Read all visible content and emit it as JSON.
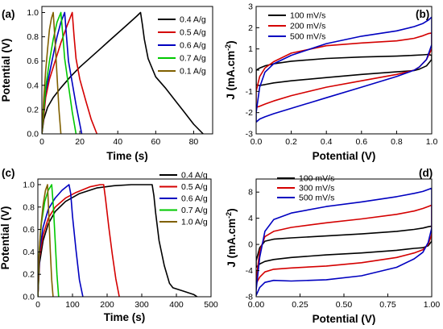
{
  "chart_data": [
    {
      "panel_label": "(a)",
      "type": "line",
      "xlabel": "Time (s)",
      "ylabel": "Potential (V)",
      "xlim": [
        0,
        90
      ],
      "ylim": [
        0,
        1.05
      ],
      "xticks": [
        0,
        20,
        40,
        60,
        80
      ],
      "yticks": [
        0.0,
        0.2,
        0.4,
        0.6,
        0.8,
        1.0
      ],
      "xtick_labels": [
        "0",
        "20",
        "40",
        "60",
        "80"
      ],
      "ytick_labels": [
        "0.0",
        "0.2",
        "0.4",
        "0.6",
        "0.8",
        "1.0"
      ],
      "legend_position": "top-right",
      "series": [
        {
          "name": "0.4 A/g",
          "color": "#000000",
          "x": [
            0,
            1,
            3,
            6,
            10,
            15,
            20,
            25,
            30,
            35,
            40,
            45,
            50,
            52,
            53,
            54,
            56,
            60,
            65,
            70,
            75,
            80,
            85
          ],
          "y": [
            0,
            0.12,
            0.22,
            0.3,
            0.38,
            0.47,
            0.55,
            0.62,
            0.69,
            0.76,
            0.83,
            0.9,
            0.97,
            1.0,
            0.9,
            0.78,
            0.62,
            0.47,
            0.38,
            0.28,
            0.18,
            0.08,
            0.0
          ]
        },
        {
          "name": "0.5 A/g",
          "color": "#d40000",
          "x": [
            0,
            1,
            2,
            4,
            7,
            10,
            13,
            16,
            17,
            18,
            20,
            23,
            26,
            29
          ],
          "y": [
            0,
            0.15,
            0.3,
            0.45,
            0.6,
            0.75,
            0.88,
            1.0,
            0.8,
            0.62,
            0.45,
            0.28,
            0.12,
            0.0
          ]
        },
        {
          "name": "0.6 A/g",
          "color": "#0000c0",
          "x": [
            0,
            1,
            2,
            4,
            6,
            8,
            10,
            12,
            13,
            14,
            16,
            18,
            20,
            21
          ],
          "y": [
            0,
            0.2,
            0.35,
            0.5,
            0.65,
            0.8,
            0.92,
            1.0,
            0.8,
            0.6,
            0.42,
            0.24,
            0.08,
            0.0
          ]
        },
        {
          "name": "0.7 A/g",
          "color": "#00c800",
          "x": [
            0,
            1,
            2,
            4,
            6,
            8,
            10,
            11,
            12,
            14,
            16,
            18
          ],
          "y": [
            0,
            0.2,
            0.38,
            0.6,
            0.78,
            0.92,
            1.0,
            0.82,
            0.62,
            0.4,
            0.18,
            0.0
          ]
        },
        {
          "name": "0.1 A/g",
          "color": "#806000",
          "x": [
            0,
            1,
            2,
            3,
            4,
            5,
            6,
            7,
            8,
            9,
            10
          ],
          "y": [
            0,
            0.3,
            0.52,
            0.7,
            0.86,
            0.95,
            1.0,
            0.75,
            0.48,
            0.2,
            0.0
          ]
        }
      ]
    },
    {
      "panel_label": "(b)",
      "type": "line",
      "xlabel": "Potential (V)",
      "ylabel": "J (mA.cm-2)",
      "ylabel_main": "J (mA.cm",
      "ylabel_sup": "-2",
      "ylabel_end": ")",
      "xlim": [
        0,
        1.0
      ],
      "ylim": [
        -3,
        3
      ],
      "xticks": [
        0,
        0.2,
        0.4,
        0.6,
        0.8,
        1.0
      ],
      "yticks": [
        -3,
        -2,
        -1,
        0,
        1,
        2,
        3
      ],
      "xtick_labels": [
        "0.0",
        "0.2",
        "0.4",
        "0.6",
        "0.8",
        "1.0"
      ],
      "ytick_labels": [
        "-3",
        "-2",
        "-1",
        "0",
        "1",
        "2",
        "3"
      ],
      "legend_position": "top-left",
      "series": [
        {
          "name": "100 mV/s",
          "color": "#000000",
          "x": [
            0,
            0.02,
            0.05,
            0.1,
            0.2,
            0.4,
            0.6,
            0.8,
            0.9,
            0.95,
            0.98,
            1.0,
            1.0,
            0.97,
            0.93,
            0.9,
            0.8,
            0.6,
            0.4,
            0.2,
            0.1,
            0.05,
            0.02,
            0,
            0
          ],
          "y": [
            0,
            0.1,
            0.2,
            0.3,
            0.42,
            0.55,
            0.62,
            0.66,
            0.7,
            0.72,
            0.74,
            0.7,
            0.5,
            0.2,
            0.05,
            -0.02,
            -0.08,
            -0.2,
            -0.35,
            -0.5,
            -0.6,
            -0.68,
            -0.72,
            -0.7,
            0
          ]
        },
        {
          "name": "200 mV/s",
          "color": "#d40000",
          "x": [
            0,
            0.02,
            0.05,
            0.1,
            0.2,
            0.4,
            0.6,
            0.8,
            0.9,
            0.95,
            0.98,
            1.0,
            1.0,
            0.97,
            0.93,
            0.9,
            0.8,
            0.6,
            0.4,
            0.2,
            0.1,
            0.05,
            0.02,
            0,
            0
          ],
          "y": [
            -1.0,
            -0.3,
            0.1,
            0.4,
            0.8,
            1.15,
            1.28,
            1.38,
            1.5,
            1.62,
            1.72,
            1.75,
            1.0,
            0.5,
            0.15,
            0.0,
            -0.2,
            -0.5,
            -0.8,
            -1.2,
            -1.45,
            -1.6,
            -1.7,
            -1.75,
            -1.0
          ]
        },
        {
          "name": "500 mV/s",
          "color": "#0000c0",
          "x": [
            0,
            0.02,
            0.05,
            0.1,
            0.2,
            0.4,
            0.6,
            0.8,
            0.9,
            0.95,
            0.98,
            1.0,
            1.0,
            0.97,
            0.93,
            0.9,
            0.8,
            0.6,
            0.4,
            0.2,
            0.1,
            0.05,
            0.02,
            0,
            0
          ],
          "y": [
            -2.0,
            -0.8,
            -0.1,
            0.3,
            0.7,
            1.25,
            1.6,
            1.85,
            2.05,
            2.2,
            2.35,
            2.5,
            1.2,
            0.5,
            0.15,
            0.0,
            -0.3,
            -0.8,
            -1.3,
            -1.8,
            -2.05,
            -2.2,
            -2.3,
            -2.45,
            -2.0
          ]
        }
      ]
    },
    {
      "panel_label": "(c)",
      "type": "line",
      "xlabel": "Time (s)",
      "ylabel": "Potential (V)",
      "xlim": [
        0,
        500
      ],
      "ylim": [
        0,
        1.05
      ],
      "xticks": [
        0,
        100,
        200,
        300,
        400,
        500
      ],
      "yticks": [
        0.0,
        0.2,
        0.4,
        0.6,
        0.8,
        1.0
      ],
      "xtick_labels": [
        "0",
        "100",
        "200",
        "300",
        "400",
        "500"
      ],
      "ytick_labels": [
        "0.0",
        "0.2",
        "0.4",
        "0.6",
        "0.8",
        "1.0"
      ],
      "legend_position": "top-right",
      "series": [
        {
          "name": "0.4 A/g",
          "color": "#000000",
          "x": [
            0,
            5,
            15,
            30,
            50,
            80,
            120,
            170,
            220,
            270,
            310,
            330,
            335,
            340,
            350,
            365,
            380,
            390,
            420,
            450,
            460
          ],
          "y": [
            0,
            0.3,
            0.5,
            0.65,
            0.76,
            0.85,
            0.92,
            0.97,
            0.99,
            1.0,
            1.0,
            1.0,
            0.9,
            0.75,
            0.5,
            0.28,
            0.12,
            0.08,
            0.05,
            0.02,
            0.0
          ]
        },
        {
          "name": "0.5 A/g",
          "color": "#d40000",
          "x": [
            0,
            5,
            15,
            30,
            50,
            80,
            110,
            150,
            180,
            190,
            195,
            205,
            215,
            225,
            235
          ],
          "y": [
            0,
            0.35,
            0.55,
            0.7,
            0.8,
            0.88,
            0.93,
            0.98,
            1.0,
            1.0,
            0.88,
            0.62,
            0.38,
            0.16,
            0.0
          ]
        },
        {
          "name": "0.6 A/g",
          "color": "#0000c0",
          "x": [
            0,
            5,
            15,
            30,
            50,
            70,
            90,
            95,
            100,
            110,
            120,
            130
          ],
          "y": [
            0,
            0.4,
            0.62,
            0.78,
            0.88,
            0.95,
            1.0,
            0.92,
            0.72,
            0.42,
            0.15,
            0.0
          ]
        },
        {
          "name": "0.7 A/g",
          "color": "#00c800",
          "x": [
            0,
            4,
            10,
            20,
            30,
            40,
            45,
            50,
            55,
            60
          ],
          "y": [
            0,
            0.4,
            0.65,
            0.85,
            0.95,
            1.0,
            0.8,
            0.5,
            0.2,
            0.0
          ]
        },
        {
          "name": "1.0 A/g",
          "color": "#806000",
          "x": [
            0,
            3,
            8,
            15,
            22,
            28,
            32,
            36,
            40,
            44
          ],
          "y": [
            0,
            0.35,
            0.6,
            0.82,
            0.95,
            1.0,
            0.7,
            0.4,
            0.15,
            0.0
          ]
        }
      ]
    },
    {
      "panel_label": "(d)",
      "type": "line",
      "xlabel": "Potential (V)",
      "ylabel": "J (mA.cm-2)",
      "ylabel_main": "J (mA.cm",
      "ylabel_sup": "-2",
      "ylabel_end": ")",
      "xlim": [
        0,
        1.0
      ],
      "ylim": [
        -8,
        10
      ],
      "xticks": [
        0,
        0.25,
        0.5,
        0.75,
        1.0
      ],
      "yticks": [
        -8,
        -4,
        0,
        4,
        8
      ],
      "xtick_labels": [
        "0.00",
        "0.25",
        "0.50",
        "0.75",
        "1.00"
      ],
      "ytick_labels": [
        "-8",
        "-4",
        "0",
        "4",
        "8"
      ],
      "legend_position": "top-left",
      "series": [
        {
          "name": "100 mV/s",
          "color": "#000000",
          "x": [
            0,
            0.02,
            0.05,
            0.1,
            0.2,
            0.4,
            0.6,
            0.8,
            0.9,
            0.95,
            0.98,
            1.0,
            1.0,
            0.98,
            0.95,
            0.9,
            0.8,
            0.6,
            0.4,
            0.2,
            0.1,
            0.05,
            0.02,
            0,
            0
          ],
          "y": [
            -2.5,
            -0.5,
            0.5,
            0.8,
            1.0,
            1.3,
            1.6,
            2.0,
            2.3,
            2.5,
            2.7,
            2.8,
            0.5,
            -0.2,
            -0.5,
            -0.6,
            -0.9,
            -1.3,
            -1.6,
            -2.0,
            -2.3,
            -2.6,
            -3.0,
            -3.5,
            -2.5
          ]
        },
        {
          "name": "300 mV/s",
          "color": "#d40000",
          "x": [
            0,
            0.02,
            0.05,
            0.1,
            0.2,
            0.4,
            0.6,
            0.8,
            0.9,
            0.95,
            0.98,
            1.0,
            1.0,
            0.98,
            0.95,
            0.9,
            0.8,
            0.6,
            0.4,
            0.2,
            0.1,
            0.05,
            0.02,
            0,
            0
          ],
          "y": [
            -5.5,
            -1.0,
            1.2,
            2.0,
            2.6,
            3.3,
            3.9,
            4.6,
            5.1,
            5.5,
            5.8,
            6.0,
            1.5,
            0.0,
            -0.8,
            -1.3,
            -2.0,
            -2.8,
            -3.3,
            -3.6,
            -3.8,
            -4.2,
            -5.0,
            -6.0,
            -5.5
          ]
        },
        {
          "name": "500 mV/s",
          "color": "#0000c0",
          "x": [
            0,
            0.02,
            0.05,
            0.1,
            0.2,
            0.4,
            0.6,
            0.8,
            0.9,
            0.95,
            0.98,
            1.0,
            1.0,
            0.98,
            0.95,
            0.9,
            0.8,
            0.6,
            0.4,
            0.2,
            0.1,
            0.05,
            0.02,
            0,
            0
          ],
          "y": [
            -7.0,
            -2.0,
            2.0,
            3.8,
            4.8,
            5.8,
            6.5,
            7.3,
            7.8,
            8.1,
            8.4,
            8.6,
            2.5,
            0.3,
            -1.2,
            -2.2,
            -3.5,
            -4.8,
            -5.4,
            -5.6,
            -5.5,
            -5.8,
            -6.6,
            -7.8,
            -7.0
          ]
        }
      ]
    }
  ]
}
